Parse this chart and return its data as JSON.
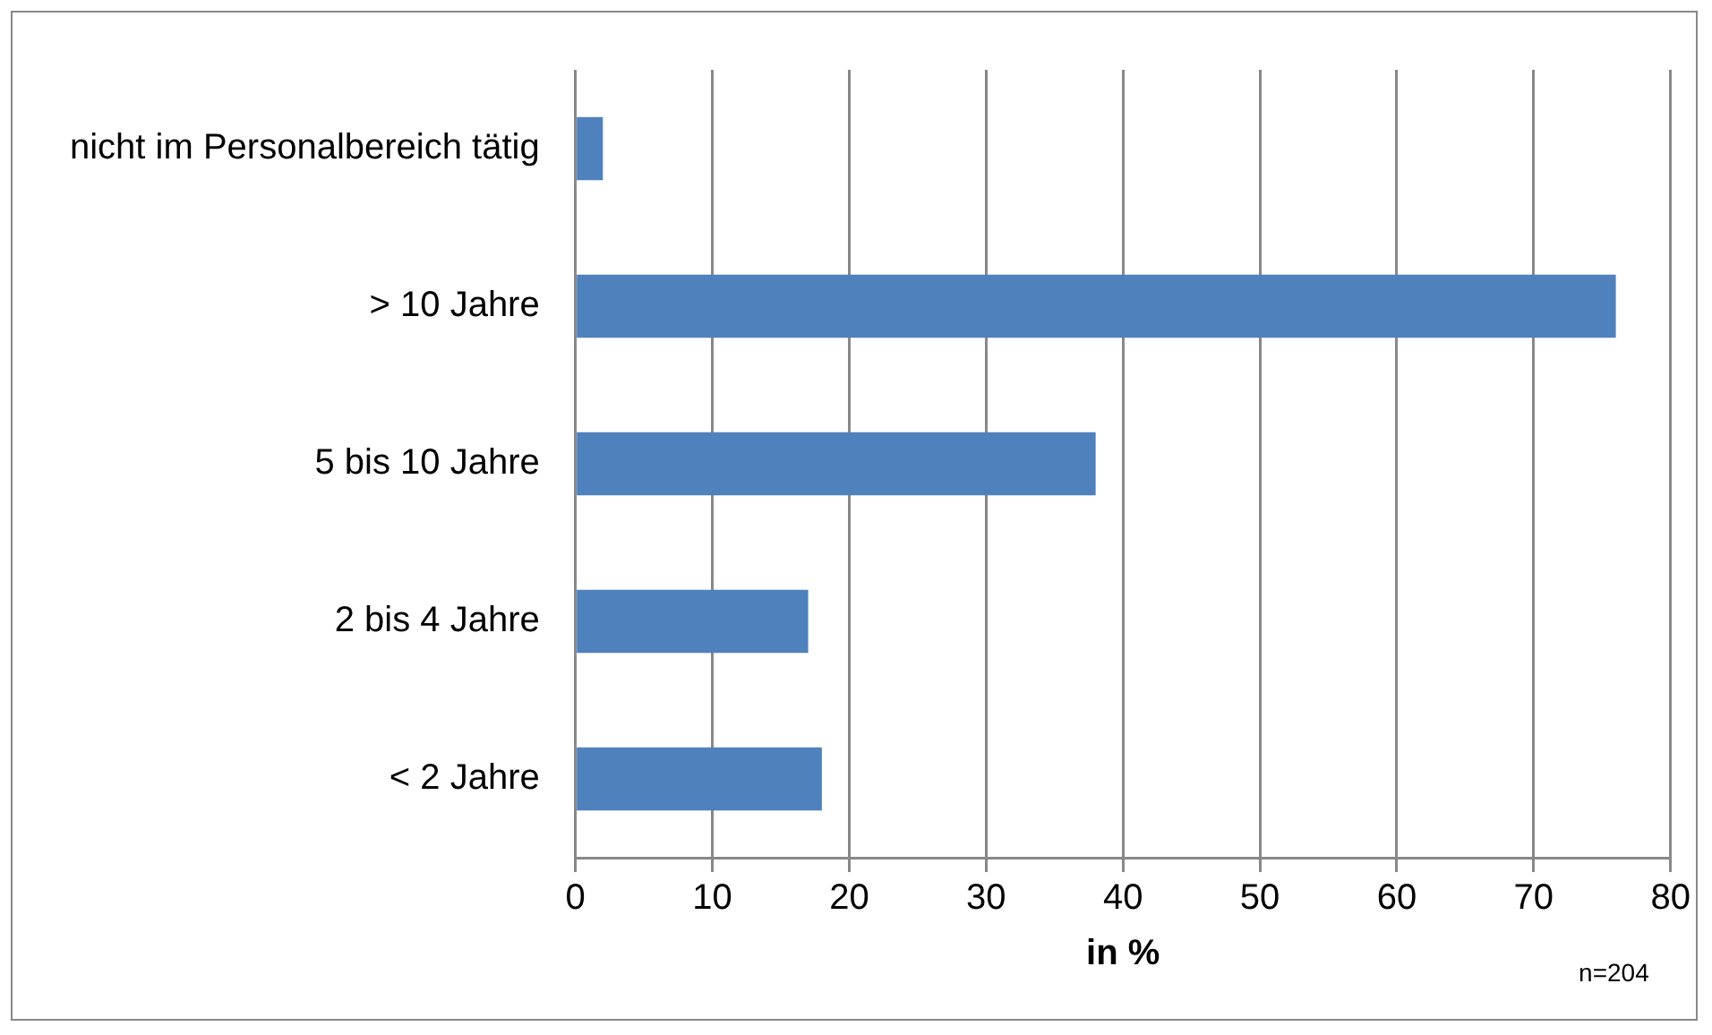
{
  "chart_data": {
    "type": "bar",
    "orientation": "horizontal",
    "xlabel": "in %",
    "categories": [
      "nicht im Personalbereich tätig",
      "> 10 Jahre",
      "5 bis 10 Jahre",
      "2 bis 4 Jahre",
      "< 2 Jahre"
    ],
    "values": [
      2,
      76,
      38,
      17,
      18
    ],
    "color": "#4f81bd",
    "xlim": [
      0,
      80
    ],
    "xticks": [
      0,
      10,
      20,
      30,
      40,
      50,
      60,
      70,
      80
    ],
    "grid": "x",
    "legend": false,
    "annotations": [
      "n=204"
    ]
  }
}
